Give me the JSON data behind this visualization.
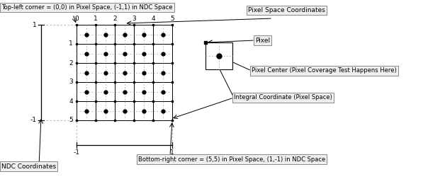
{
  "bg_color": "#ffffff",
  "annotations": {
    "top_left": "Top-left corner = (0,0) in Pixel Space, (-1,1) in NDC Space",
    "bottom_right": "Bottom-right corner = (5,5) in Pixel Space, (1,-1) in NDC Space",
    "ndc": "NDC Coordinates",
    "pixel_space": "Pixel Space Coordinates",
    "pixel": "Pixel",
    "pixel_center": "Pixel Center (Pixel Coverage Test Happens Here)",
    "integral": "Integral Coordinate (Pixel Space)"
  },
  "figsize": [
    6.04,
    2.6
  ],
  "dpi": 100
}
